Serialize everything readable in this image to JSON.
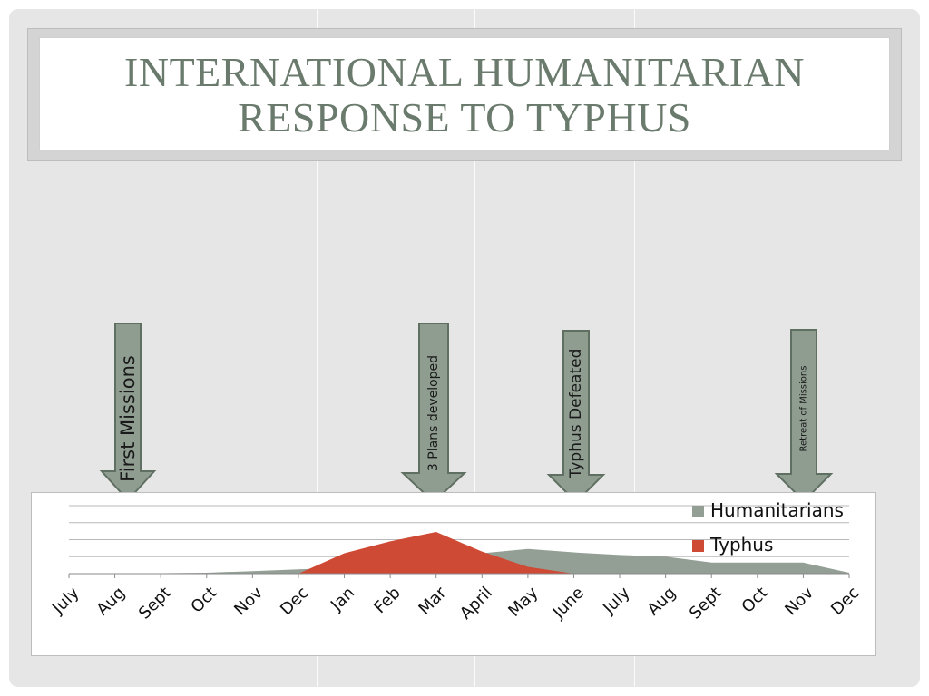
{
  "slide": {
    "title": "International Humanitarian\nResponse to  Typhus"
  },
  "annotations": [
    {
      "label": "First Missions",
      "icon": "down-arrow-icon"
    },
    {
      "label": "3 Plans developed",
      "icon": "down-arrow-icon"
    },
    {
      "label": "Typhus Defeated",
      "icon": "down-arrow-icon"
    },
    {
      "label": "Retreat of Missions",
      "icon": "down-arrow-icon"
    }
  ],
  "colors": {
    "arrow_fill": "#8f9d91",
    "arrow_stroke": "#5f6f61",
    "humanitarians": "#939f95",
    "typhus": "#cf4a35",
    "title": "#6a7a6c"
  },
  "chart_data": {
    "type": "area",
    "categories": [
      "July",
      "Aug",
      "Sept",
      "Oct",
      "Nov",
      "Dec",
      "Jan",
      "Feb",
      "Mar",
      "April",
      "May",
      "June",
      "July",
      "Aug",
      "Sept",
      "Oct",
      "Nov",
      "Dec"
    ],
    "series": [
      {
        "name": "Humanitarians",
        "values": [
          0.2,
          0.2,
          0.3,
          0.5,
          1.5,
          2.5,
          3.5,
          4.5,
          6,
          12,
          14.5,
          12.5,
          11,
          10,
          6.5,
          6.5,
          6.5,
          0.5
        ]
      },
      {
        "name": "Typhus",
        "values": [
          0,
          0,
          0,
          0,
          0,
          0,
          12,
          19,
          24.5,
          13,
          4,
          0,
          0,
          0,
          0,
          0,
          0,
          0
        ]
      }
    ],
    "ylim": [
      0,
      40
    ],
    "grid": true,
    "legend": "top-right",
    "xlabel": "",
    "ylabel": ""
  }
}
